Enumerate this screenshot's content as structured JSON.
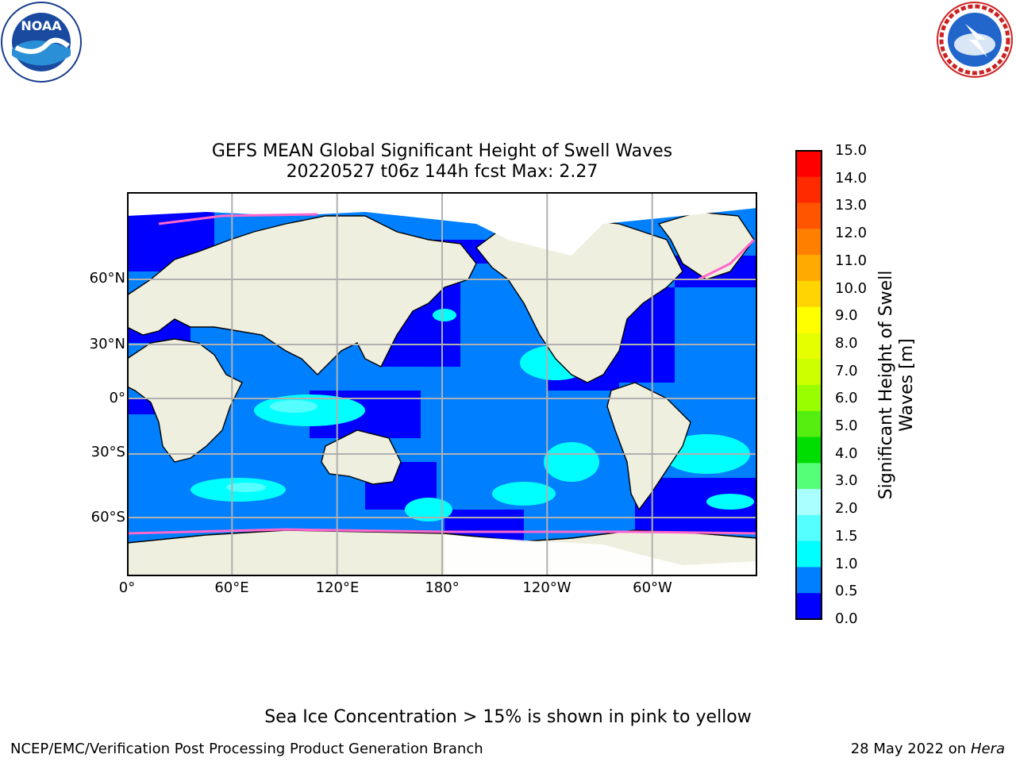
{
  "title_line1": "GEFS MEAN Global Significant Height of Swell Waves",
  "title_line2": "20220527 t06z 144h fcst   Max: 2.27",
  "colorbar": {
    "label_line1": "Significant Height of Swell",
    "label_line2": "Waves [m]",
    "ticks": [
      "15.0",
      "14.0",
      "13.0",
      "12.0",
      "11.0",
      "10.0",
      "9.0",
      "8.0",
      "7.0",
      "6.0",
      "5.0",
      "4.0",
      "3.0",
      "2.0",
      "1.5",
      "1.0",
      "0.5",
      "0.0"
    ],
    "colors_top_to_bottom": [
      "#ff0000",
      "#ff2a00",
      "#ff5500",
      "#ff8000",
      "#ffaa00",
      "#ffd400",
      "#ffff00",
      "#e6ff00",
      "#ccff00",
      "#99ff00",
      "#55ee11",
      "#00dd00",
      "#55ff77",
      "#aaffff",
      "#55ffff",
      "#00ffff",
      "#0080ff",
      "#0000ff"
    ]
  },
  "map": {
    "lat_labels": [
      "60°N",
      "30°N",
      "0°",
      "30°S",
      "60°S"
    ],
    "lon_labels": [
      "0°",
      "60°E",
      "120°E",
      "180°",
      "120°W",
      "60°W"
    ],
    "land_color": "#efefdf",
    "ice_color": "#ffffff"
  },
  "footnote": "Sea Ice Concentration > 15% is shown in pink to yellow",
  "credit": "NCEP/EMC/Verification Post Processing Product Generation Branch",
  "date": "28 May 2022 on",
  "machine": "Hera",
  "logos": {
    "left_text": "NOAA",
    "right_text": "NATIONAL WEATHER SERVICE"
  }
}
